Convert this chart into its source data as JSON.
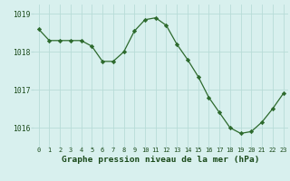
{
  "x": [
    0,
    1,
    2,
    3,
    4,
    5,
    6,
    7,
    8,
    9,
    10,
    11,
    12,
    13,
    14,
    15,
    16,
    17,
    18,
    19,
    20,
    21,
    22,
    23
  ],
  "y": [
    1018.6,
    1018.3,
    1018.3,
    1018.3,
    1018.3,
    1018.15,
    1017.75,
    1017.75,
    1018.0,
    1018.55,
    1018.85,
    1018.9,
    1018.7,
    1018.2,
    1017.8,
    1017.35,
    1016.8,
    1016.4,
    1016.0,
    1015.85,
    1015.9,
    1016.15,
    1016.5,
    1016.9
  ],
  "line_color": "#2d6a2d",
  "marker": "D",
  "marker_size": 2.2,
  "background_color": "#d8f0ee",
  "grid_color": "#b8dcd8",
  "ylabel_ticks": [
    1016,
    1017,
    1018,
    1019
  ],
  "xlabel": "Graphe pression niveau de la mer (hPa)",
  "xlim": [
    -0.5,
    23.5
  ],
  "ylim": [
    1015.55,
    1019.25
  ],
  "tick_labels": [
    "0",
    "1",
    "2",
    "3",
    "4",
    "5",
    "6",
    "7",
    "8",
    "9",
    "10",
    "11",
    "12",
    "13",
    "14",
    "15",
    "16",
    "17",
    "18",
    "19",
    "20",
    "21",
    "22",
    "23"
  ],
  "tick_fontsize": 5.0,
  "ytick_fontsize": 5.8,
  "xlabel_fontsize": 6.8,
  "xlabel_color": "#1a4a1a",
  "linewidth": 0.9
}
